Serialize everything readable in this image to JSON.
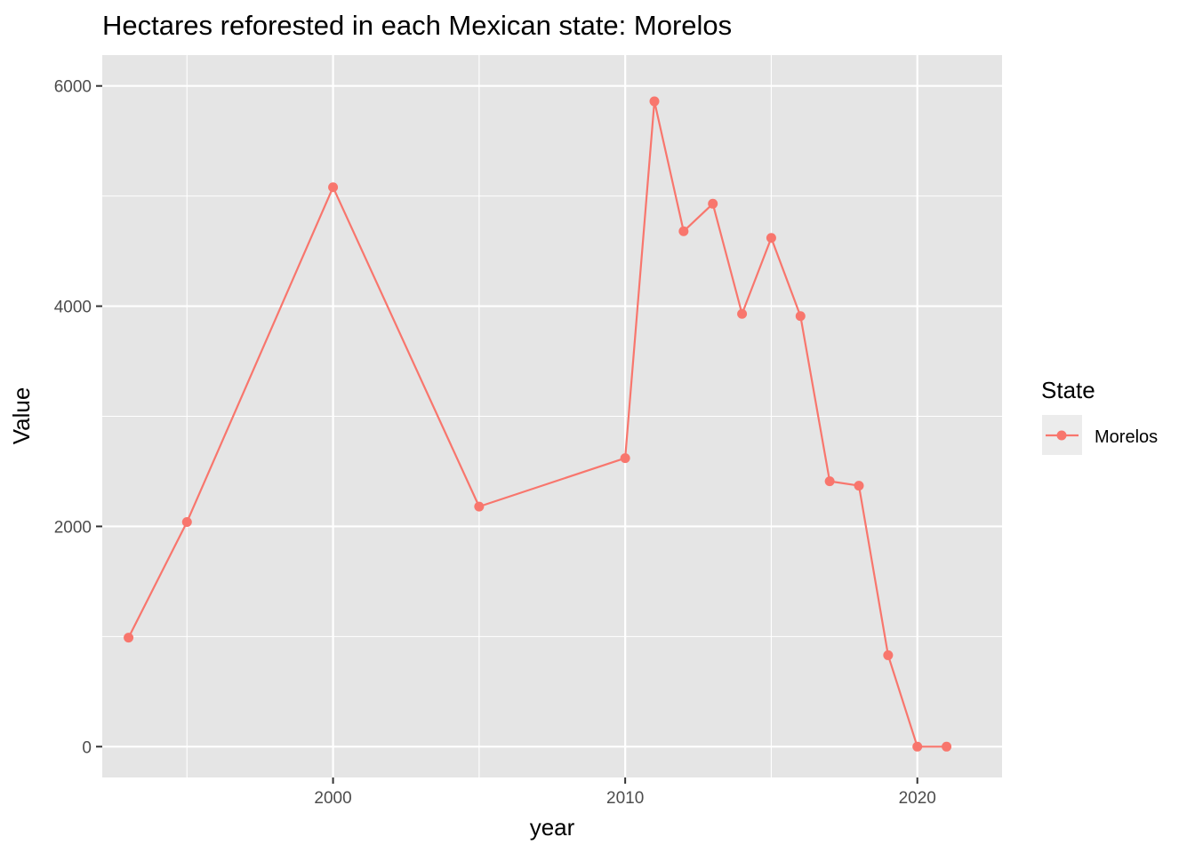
{
  "chart_data": {
    "type": "line",
    "title": "Hectares reforested in each Mexican state: Morelos",
    "xlabel": "year",
    "ylabel": "Value",
    "xlim": [
      1992.1,
      2022.9
    ],
    "ylim": [
      -280,
      6280
    ],
    "x_ticks": [
      2000,
      2010,
      2020
    ],
    "x_tick_labels": [
      "2000",
      "2010",
      "2020"
    ],
    "y_ticks": [
      0,
      2000,
      4000,
      6000
    ],
    "y_tick_labels": [
      "0",
      "2000",
      "4000",
      "6000"
    ],
    "grid": true,
    "legend": {
      "title": "State",
      "position": "right"
    },
    "series": [
      {
        "name": "Morelos",
        "color": "#F8766D",
        "x": [
          1993,
          1995,
          2000,
          2005,
          2010,
          2011,
          2012,
          2013,
          2014,
          2015,
          2016,
          2017,
          2018,
          2019,
          2020,
          2021
        ],
        "values": [
          990,
          2040,
          5080,
          2180,
          2620,
          5860,
          4680,
          4930,
          3930,
          4620,
          3910,
          2410,
          2370,
          830,
          0,
          0
        ]
      }
    ]
  }
}
